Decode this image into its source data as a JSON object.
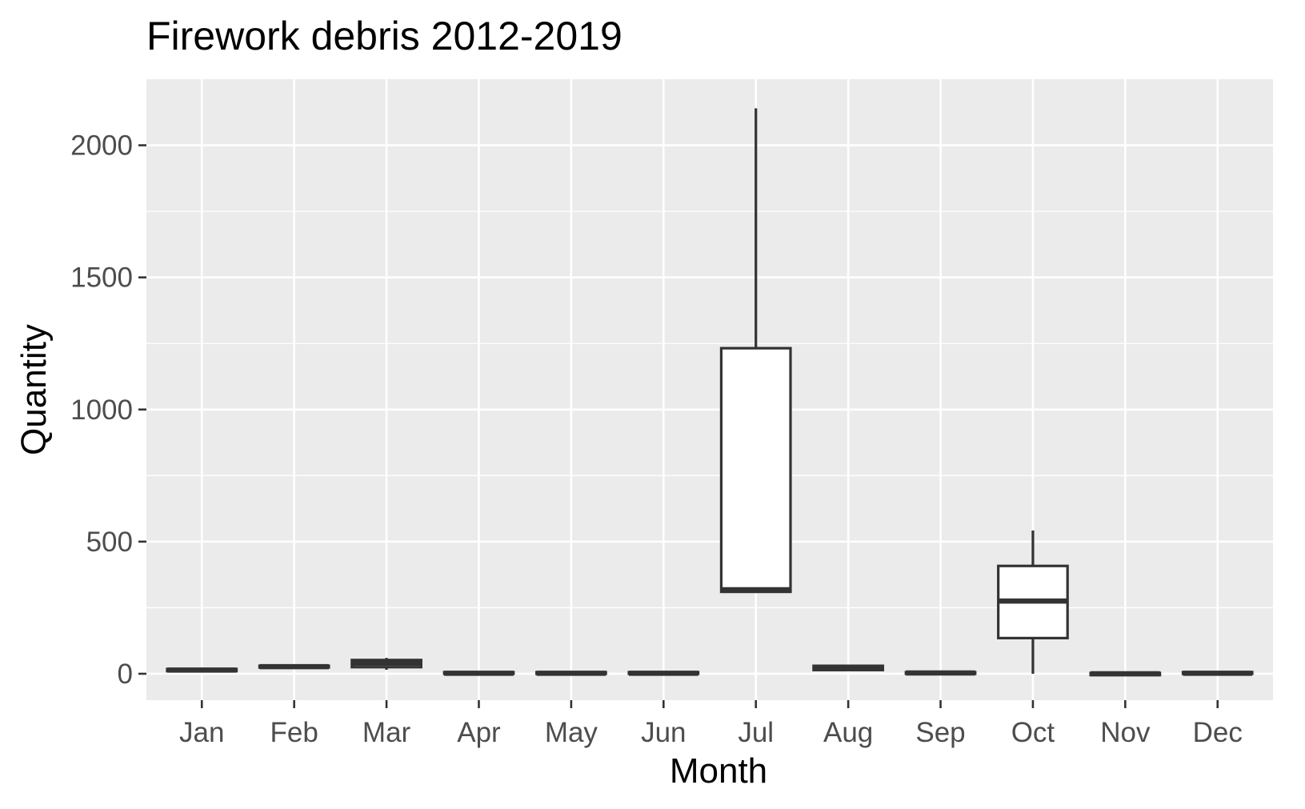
{
  "chart_data": {
    "type": "boxplot",
    "title": "Firework debris 2012-2019",
    "xlabel": "Month",
    "ylabel": "Quantity",
    "categories": [
      "Jan",
      "Feb",
      "Mar",
      "Apr",
      "May",
      "Jun",
      "Jul",
      "Aug",
      "Sep",
      "Oct",
      "Nov",
      "Dec"
    ],
    "ylim": [
      -100,
      2250
    ],
    "yticks": [
      0,
      500,
      1000,
      1500,
      2000
    ],
    "ytick_labels": [
      "0",
      "500",
      "1000",
      "1500",
      "2000"
    ],
    "grid": true,
    "boxes": [
      {
        "category": "Jan",
        "min": 10,
        "q1": 10,
        "median": 14,
        "q3": 18,
        "max": 20
      },
      {
        "category": "Feb",
        "min": 24,
        "q1": 24,
        "median": 27,
        "q3": 30,
        "max": 32
      },
      {
        "category": "Mar",
        "min": 15,
        "q1": 25,
        "median": 40,
        "q3": 52,
        "max": 60
      },
      {
        "category": "Apr",
        "min": 0,
        "q1": 0,
        "median": 2,
        "q3": 6,
        "max": 8
      },
      {
        "category": "May",
        "min": 0,
        "q1": 0,
        "median": 2,
        "q3": 6,
        "max": 8
      },
      {
        "category": "Jun",
        "min": 0,
        "q1": 0,
        "median": 2,
        "q3": 6,
        "max": 8
      },
      {
        "category": "Jul",
        "min": 310,
        "q1": 310,
        "median": 318,
        "q3": 1232,
        "max": 2140
      },
      {
        "category": "Aug",
        "min": 10,
        "q1": 14,
        "median": 22,
        "q3": 30,
        "max": 32
      },
      {
        "category": "Sep",
        "min": 0,
        "q1": 0,
        "median": 3,
        "q3": 6,
        "max": 8
      },
      {
        "category": "Oct",
        "min": 0,
        "q1": 135,
        "median": 275,
        "q3": 408,
        "max": 542
      },
      {
        "category": "Nov",
        "min": -5,
        "q1": -5,
        "median": 0,
        "q3": 3,
        "max": 5
      },
      {
        "category": "Dec",
        "min": 0,
        "q1": 0,
        "median": 2,
        "q3": 6,
        "max": 8
      }
    ],
    "colors": {
      "panel_background": "#ebebeb",
      "grid_line": "#ffffff",
      "box_fill": "#ffffff",
      "box_stroke": "#333333",
      "tick_label": "#4d4d4d",
      "title": "#000000"
    }
  }
}
